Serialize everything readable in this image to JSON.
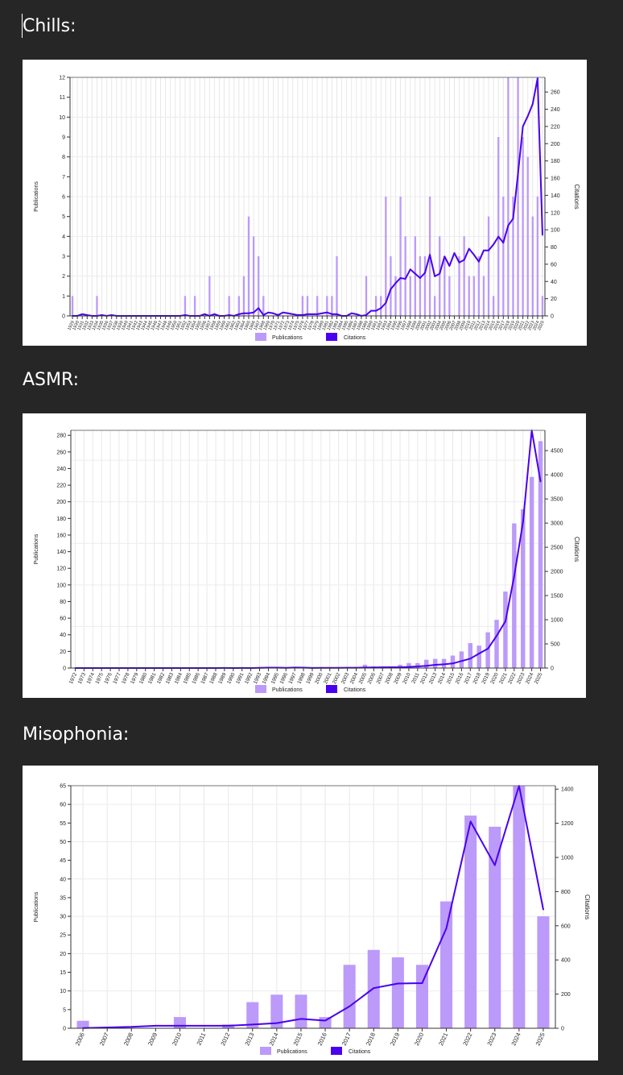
{
  "colors": {
    "background": "#262626",
    "publications": "#BB9AFA",
    "citations": "#4A00F0"
  },
  "chart_data": [
    {
      "heading": "Chills:",
      "type": "bar+line",
      "legend": [
        "Publications",
        "Citations"
      ],
      "legend_placement": "bottom-center",
      "ylabel_left": "Publications",
      "ylabel_right": "Citations",
      "left_axis": {
        "ylim": [
          0,
          12
        ],
        "tick_step": 1,
        "grid_step": 2
      },
      "right_axis": {
        "ylim": [
          0,
          277
        ],
        "tick_step": 20
      },
      "categories": [
        "1929",
        "1930",
        "1931",
        "1932",
        "1933",
        "1934",
        "1935",
        "1936",
        "1937",
        "1938",
        "1939",
        "1940",
        "1941",
        "1942",
        "1943",
        "1944",
        "1945",
        "1946",
        "1947",
        "1948",
        "1949",
        "1950",
        "1951",
        "1952",
        "1953",
        "1954",
        "1955",
        "1956",
        "1957",
        "1958",
        "1959",
        "1960",
        "1961",
        "1962",
        "1963",
        "1964",
        "1965",
        "1966",
        "1967",
        "1968",
        "1969",
        "1970",
        "1971",
        "1972",
        "1973",
        "1974",
        "1975",
        "1976",
        "1977",
        "1978",
        "1979",
        "1980",
        "1981",
        "1982",
        "1983",
        "1984",
        "1985",
        "1986",
        "1987",
        "1988",
        "1989",
        "1990",
        "1991",
        "1992",
        "1993",
        "1994",
        "1995",
        "1996",
        "1997",
        "1998",
        "1999",
        "2000",
        "2001",
        "2002",
        "2003",
        "2004",
        "2005",
        "2006",
        "2007",
        "2008",
        "2009",
        "2010",
        "2011",
        "2012",
        "2013",
        "2014",
        "2015",
        "2016",
        "2017",
        "2018",
        "2019",
        "2020",
        "2021",
        "2022",
        "2023",
        "2024",
        "2025"
      ],
      "series": [
        {
          "name": "Publications",
          "kind": "bar",
          "values": [
            1,
            0,
            0,
            0,
            0,
            1,
            0,
            0,
            0,
            0,
            0,
            0,
            0,
            0,
            0,
            0,
            0,
            0,
            0,
            0,
            0,
            0,
            0,
            1,
            0,
            1,
            0,
            0,
            2,
            0,
            0,
            0,
            1,
            0,
            1,
            2,
            5,
            4,
            3,
            1,
            0,
            0,
            0,
            0,
            0,
            0,
            0,
            1,
            1,
            0,
            1,
            0,
            1,
            1,
            3,
            0,
            0,
            0,
            0,
            0,
            2,
            0,
            1,
            1,
            6,
            3,
            2,
            6,
            4,
            2,
            4,
            3,
            3,
            6,
            1,
            4,
            3,
            2,
            0,
            3,
            4,
            2,
            2,
            3,
            2,
            5,
            1,
            9,
            6,
            12,
            6,
            12,
            9,
            8,
            5,
            6,
            1
          ]
        },
        {
          "name": "Citations",
          "kind": "line",
          "values": [
            0,
            0,
            2,
            1,
            0,
            0,
            1,
            0,
            1,
            0,
            0,
            0,
            0,
            0,
            0,
            0,
            0,
            0,
            0,
            0,
            0,
            0,
            0,
            1,
            0,
            0,
            0,
            2,
            0,
            2,
            0,
            0,
            1,
            0,
            2,
            3,
            3,
            4,
            9,
            1,
            4,
            3,
            1,
            4,
            3,
            2,
            1,
            1,
            2,
            2,
            2,
            3,
            4,
            2,
            2,
            0,
            0,
            3,
            2,
            0,
            1,
            6,
            6,
            9,
            15,
            31,
            38,
            44,
            43,
            54,
            49,
            44,
            50,
            71,
            46,
            49,
            69,
            58,
            73,
            62,
            65,
            78,
            71,
            63,
            76,
            76,
            83,
            92,
            85,
            105,
            113,
            165,
            220,
            232,
            246,
            276,
            94
          ]
        }
      ]
    },
    {
      "heading": "ASMR:",
      "type": "bar+line",
      "legend": [
        "Publications",
        "Citations"
      ],
      "legend_placement": "bottom-center",
      "ylabel_left": "Publications",
      "ylabel_right": "Citations",
      "left_axis": {
        "ylim": [
          0,
          286
        ],
        "tick_step": 20,
        "grid_step": 50
      },
      "right_axis": {
        "ylim": [
          0,
          4920
        ],
        "tick_step": 500
      },
      "categories": [
        "1972",
        "1973",
        "1974",
        "1975",
        "1976",
        "1977",
        "1978",
        "1979",
        "1980",
        "1981",
        "1982",
        "1983",
        "1984",
        "1985",
        "1986",
        "1987",
        "1988",
        "1989",
        "1990",
        "1991",
        "1992",
        "1993",
        "1994",
        "1995",
        "1996",
        "1997",
        "1998",
        "1999",
        "2000",
        "2001",
        "2002",
        "2003",
        "2004",
        "2005",
        "2006",
        "2007",
        "2008",
        "2009",
        "2010",
        "2011",
        "2012",
        "2013",
        "2014",
        "2015",
        "2016",
        "2017",
        "2018",
        "2019",
        "2020",
        "2021",
        "2022",
        "2023",
        "2024",
        "2025"
      ],
      "series": [
        {
          "name": "Publications",
          "kind": "bar",
          "values": [
            0,
            0,
            0,
            0,
            0,
            0,
            0,
            0,
            0,
            0,
            0,
            0,
            0,
            0,
            0,
            0,
            0,
            1,
            0,
            0,
            0,
            0,
            1,
            1,
            0,
            1,
            1,
            0,
            0,
            0,
            1,
            1,
            1,
            4,
            2,
            2,
            2,
            4,
            6,
            6,
            10,
            11,
            11,
            15,
            20,
            30,
            27,
            43,
            58,
            92,
            174,
            191,
            230,
            273
          ]
        },
        {
          "name": "Citations",
          "kind": "line",
          "values": [
            0,
            0,
            0,
            0,
            0,
            0,
            0,
            0,
            0,
            0,
            0,
            0,
            0,
            0,
            0,
            0,
            0,
            2,
            0,
            2,
            0,
            5,
            8,
            8,
            4,
            10,
            8,
            2,
            4,
            4,
            5,
            6,
            6,
            10,
            12,
            15,
            17,
            17,
            22,
            33,
            45,
            67,
            78,
            95,
            145,
            195,
            300,
            400,
            667,
            968,
            1900,
            3015,
            4920,
            3860
          ]
        }
      ]
    },
    {
      "heading": "Misophonia:",
      "type": "bar+line",
      "legend": [
        "Publications",
        "Citations"
      ],
      "legend_placement": "bottom-center",
      "ylabel_left": "Publications",
      "ylabel_right": "Citations",
      "left_axis": {
        "ylim": [
          0,
          65
        ],
        "tick_step": 5,
        "grid_step": 10
      },
      "right_axis": {
        "ylim": [
          0,
          1420
        ],
        "tick_step": 200
      },
      "categories": [
        "2006",
        "2007",
        "2008",
        "2009",
        "2010",
        "2011",
        "2012",
        "2013",
        "2014",
        "2015",
        "2016",
        "2017",
        "2018",
        "2019",
        "2020",
        "2021",
        "2022",
        "2023",
        "2024",
        "2025"
      ],
      "series": [
        {
          "name": "Publications",
          "kind": "bar",
          "values": [
            2,
            0,
            0,
            0,
            3,
            0,
            1,
            7,
            9,
            9,
            3,
            17,
            21,
            19,
            17,
            34,
            57,
            54,
            65,
            30
          ]
        },
        {
          "name": "Citations",
          "kind": "line",
          "values": [
            1,
            5,
            8,
            15,
            15,
            15,
            15,
            22,
            30,
            55,
            45,
            128,
            235,
            262,
            264,
            585,
            1210,
            955,
            1420,
            695
          ]
        }
      ]
    }
  ]
}
